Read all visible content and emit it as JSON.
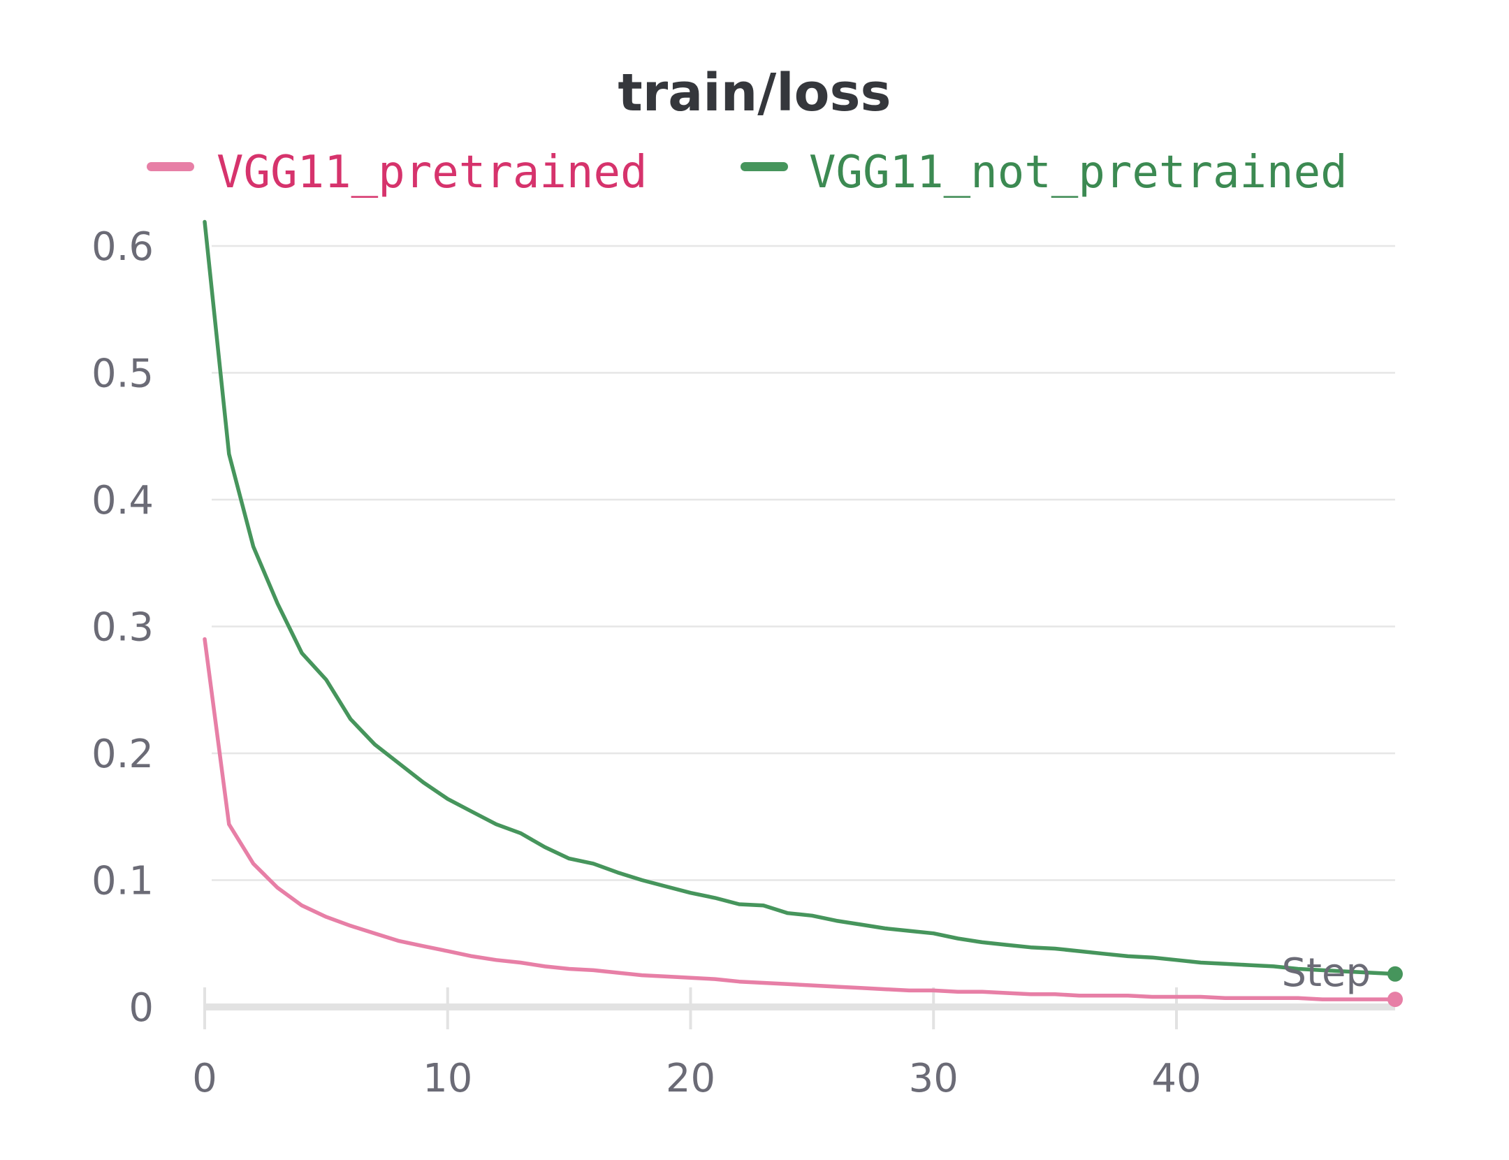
{
  "colors": {
    "pretrained_line": "#e77fa6",
    "pretrained_text": "#d6336c",
    "not_pretrained_line": "#46955c",
    "not_pretrained_text": "#3c8a52"
  },
  "chart_data": {
    "type": "line",
    "title": "train/loss",
    "xlabel": "Step",
    "ylabel": "",
    "xlim": [
      0,
      49
    ],
    "ylim": [
      0,
      0.6
    ],
    "x_ticks": [
      0,
      10,
      20,
      30,
      40
    ],
    "y_ticks": [
      0,
      0.1,
      0.2,
      0.3,
      0.4,
      0.5,
      0.6
    ],
    "x_tick_labels": [
      "0",
      "10",
      "20",
      "30",
      "40"
    ],
    "y_tick_labels": [
      "0",
      "0.1",
      "0.2",
      "0.3",
      "0.4",
      "0.5",
      "0.6"
    ],
    "grid": true,
    "legend_position": "top",
    "x": [
      0,
      1,
      2,
      3,
      4,
      5,
      6,
      7,
      8,
      9,
      10,
      11,
      12,
      13,
      14,
      15,
      16,
      17,
      18,
      19,
      20,
      21,
      22,
      23,
      24,
      25,
      26,
      27,
      28,
      29,
      30,
      31,
      32,
      33,
      34,
      35,
      36,
      37,
      38,
      39,
      40,
      41,
      42,
      43,
      44,
      45,
      46,
      47,
      48,
      49
    ],
    "series": [
      {
        "name": "VGG11_pretrained",
        "color_key": "pretrained_line",
        "text_color_key": "pretrained_text",
        "values": [
          0.29,
          0.144,
          0.113,
          0.094,
          0.08,
          0.071,
          0.064,
          0.058,
          0.052,
          0.048,
          0.044,
          0.04,
          0.037,
          0.035,
          0.032,
          0.03,
          0.029,
          0.027,
          0.025,
          0.024,
          0.023,
          0.022,
          0.02,
          0.019,
          0.018,
          0.017,
          0.016,
          0.015,
          0.014,
          0.013,
          0.013,
          0.012,
          0.012,
          0.011,
          0.01,
          0.01,
          0.009,
          0.009,
          0.009,
          0.008,
          0.008,
          0.008,
          0.007,
          0.007,
          0.007,
          0.007,
          0.006,
          0.006,
          0.006,
          0.006
        ]
      },
      {
        "name": "VGG11_not_pretrained",
        "color_key": "not_pretrained_line",
        "text_color_key": "not_pretrained_text",
        "values": [
          0.619,
          0.436,
          0.363,
          0.318,
          0.279,
          0.258,
          0.227,
          0.207,
          0.192,
          0.177,
          0.164,
          0.154,
          0.144,
          0.137,
          0.126,
          0.117,
          0.113,
          0.106,
          0.1,
          0.095,
          0.09,
          0.086,
          0.081,
          0.08,
          0.074,
          0.072,
          0.068,
          0.065,
          0.062,
          0.06,
          0.058,
          0.054,
          0.051,
          0.049,
          0.047,
          0.046,
          0.044,
          0.042,
          0.04,
          0.039,
          0.037,
          0.035,
          0.034,
          0.033,
          0.032,
          0.03,
          0.029,
          0.028,
          0.027,
          0.026
        ]
      }
    ]
  }
}
